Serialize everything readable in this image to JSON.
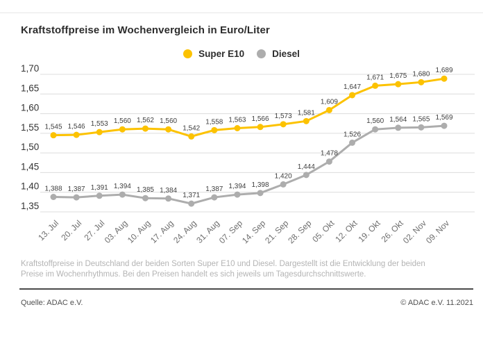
{
  "page": {
    "title": "Kraftstoffpreise im Wochenvergleich in Euro/Liter",
    "footnote": "Kraftstoffpreise in Deutschland der beiden Sorten Super E10 und Diesel. Dargestellt ist die Entwicklung der beiden Preise im Wochenrhythmus. Bei den Preisen handelt es sich jeweils um Tagesdurchschnittswerte.",
    "source_left": "Quelle: ADAC e.V.",
    "source_right": "© ADAC e.V. 11.2021"
  },
  "chart_data": {
    "type": "line",
    "title": "Kraftstoffpreise im Wochenvergleich in Euro/Liter",
    "categories": [
      "13. Jul",
      "20. Jul",
      "27. Jul",
      "03. Aug",
      "10. Aug",
      "17. Aug",
      "24. Aug",
      "31. Aug",
      "07. Sep",
      "14. Sep",
      "21. Sep",
      "28. Sep",
      "05. Okt",
      "12. Okt",
      "19. Okt",
      "26. Okt",
      "02. Nov",
      "09. Nov"
    ],
    "series": [
      {
        "name": "Super E10",
        "color": "#fcc200",
        "values": [
          1.545,
          1.546,
          1.553,
          1.56,
          1.562,
          1.56,
          1.542,
          1.558,
          1.563,
          1.566,
          1.573,
          1.581,
          1.609,
          1.647,
          1.671,
          1.675,
          1.68,
          1.689
        ]
      },
      {
        "name": "Diesel",
        "color": "#adadad",
        "values": [
          1.388,
          1.387,
          1.391,
          1.394,
          1.385,
          1.384,
          1.371,
          1.387,
          1.394,
          1.398,
          1.42,
          1.444,
          1.478,
          1.526,
          1.56,
          1.564,
          1.565,
          1.569
        ]
      }
    ],
    "ylim": [
      1.35,
      1.7
    ],
    "ytick_step": 0.05,
    "ytick_labels": [
      "1,70",
      "1,65",
      "1,60",
      "1,55",
      "1,50",
      "1,45",
      "1,40",
      "1,35"
    ],
    "xlabel": "",
    "ylabel": "",
    "grid": true,
    "legend_position": "top-center",
    "decimal_separator": ",",
    "value_label_decimals": 3
  }
}
